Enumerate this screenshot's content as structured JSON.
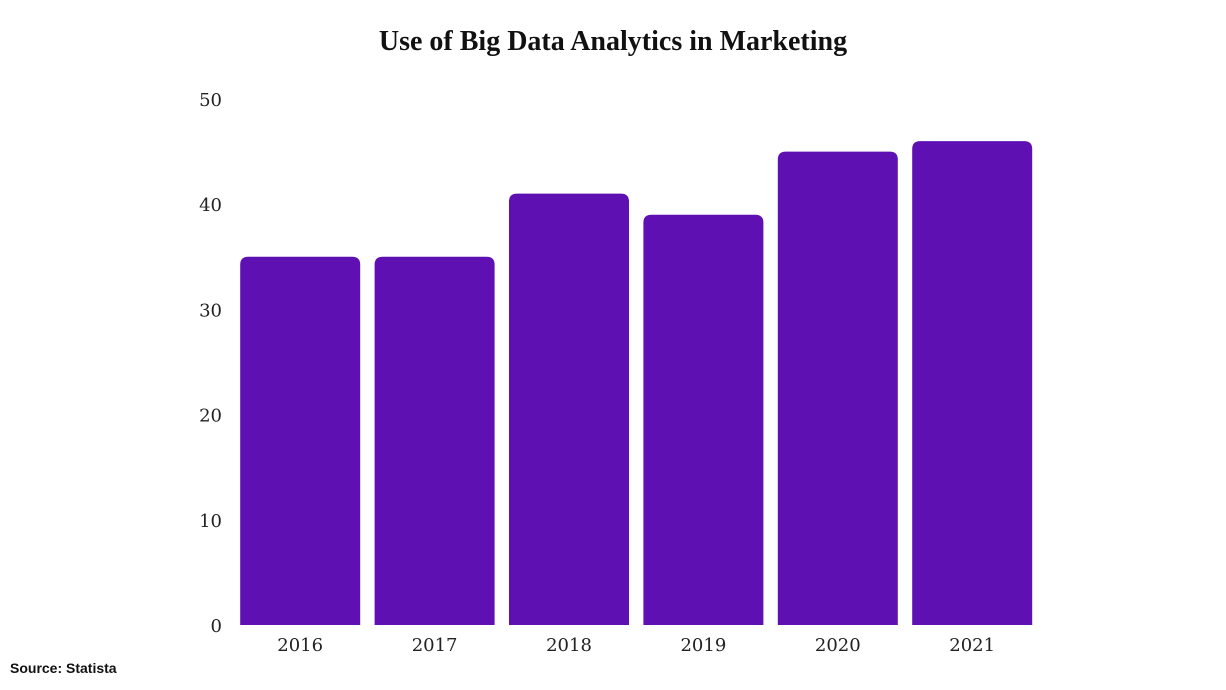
{
  "chart_data": {
    "type": "bar",
    "title": "Use of Big Data Analytics in Marketing",
    "categories": [
      "2016",
      "2017",
      "2018",
      "2019",
      "2020",
      "2021"
    ],
    "values": [
      35,
      35,
      41,
      39,
      45,
      46
    ],
    "xlabel": "",
    "ylabel": "",
    "ylim": [
      0,
      50
    ],
    "yticks": [
      0,
      10,
      20,
      30,
      40,
      50
    ],
    "grid": false,
    "bar_color": "#5f10b3"
  },
  "source": "Source: Statista"
}
